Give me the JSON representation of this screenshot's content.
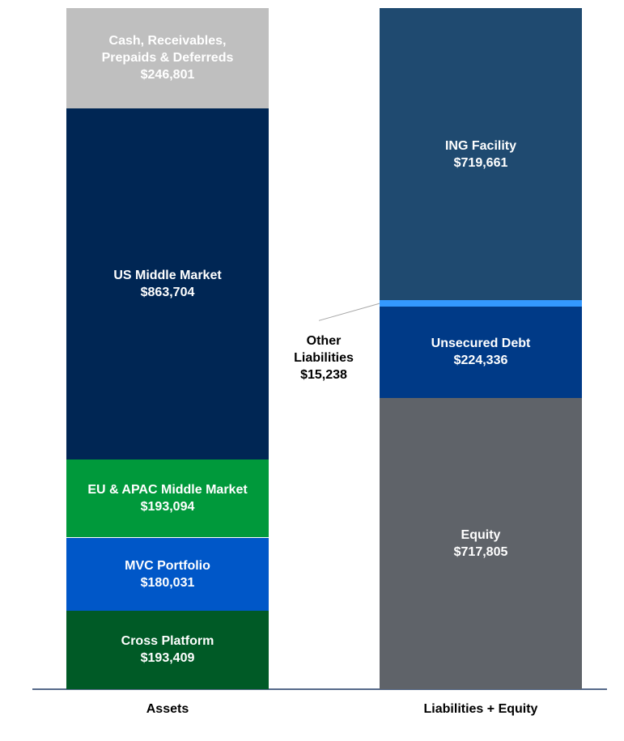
{
  "chart_data": {
    "type": "bar",
    "stacked": true,
    "categories": [
      "Assets",
      "Liabilities + Equity"
    ],
    "series": [
      {
        "name": "Cross Platform",
        "color": "#005a26",
        "values": [
          193409,
          null
        ],
        "value_labels": [
          "$193,409",
          null
        ]
      },
      {
        "name": "MVC Portfolio",
        "color": "#0057c8",
        "values": [
          180031,
          null
        ],
        "value_labels": [
          "$180,031",
          null
        ]
      },
      {
        "name": "EU & APAC Middle Market",
        "color": "#00993b",
        "values": [
          193094,
          null
        ],
        "value_labels": [
          "$193,094",
          null
        ]
      },
      {
        "name": "US Middle Market",
        "color": "#002654",
        "values": [
          863704,
          null
        ],
        "value_labels": [
          "$863,704",
          null
        ]
      },
      {
        "name": "Cash, Receivables, Prepaids & Deferreds",
        "color": "#bfbfbf",
        "values": [
          246801,
          null
        ],
        "value_labels": [
          "$246,801",
          null
        ]
      },
      {
        "name": "Equity",
        "color": "#5f6369",
        "values": [
          null,
          717805
        ],
        "value_labels": [
          null,
          "$717,805"
        ]
      },
      {
        "name": "Unsecured Debt",
        "color": "#003a87",
        "values": [
          null,
          224336
        ],
        "value_labels": [
          null,
          "$224,336"
        ]
      },
      {
        "name": "Other Liabilities",
        "color": "#3399ff",
        "values": [
          null,
          15238
        ],
        "value_labels": [
          null,
          "$15,238"
        ]
      },
      {
        "name": "ING Facility",
        "color": "#1f4a70",
        "values": [
          null,
          719661
        ],
        "value_labels": [
          null,
          "$719,661"
        ]
      }
    ]
  }
}
